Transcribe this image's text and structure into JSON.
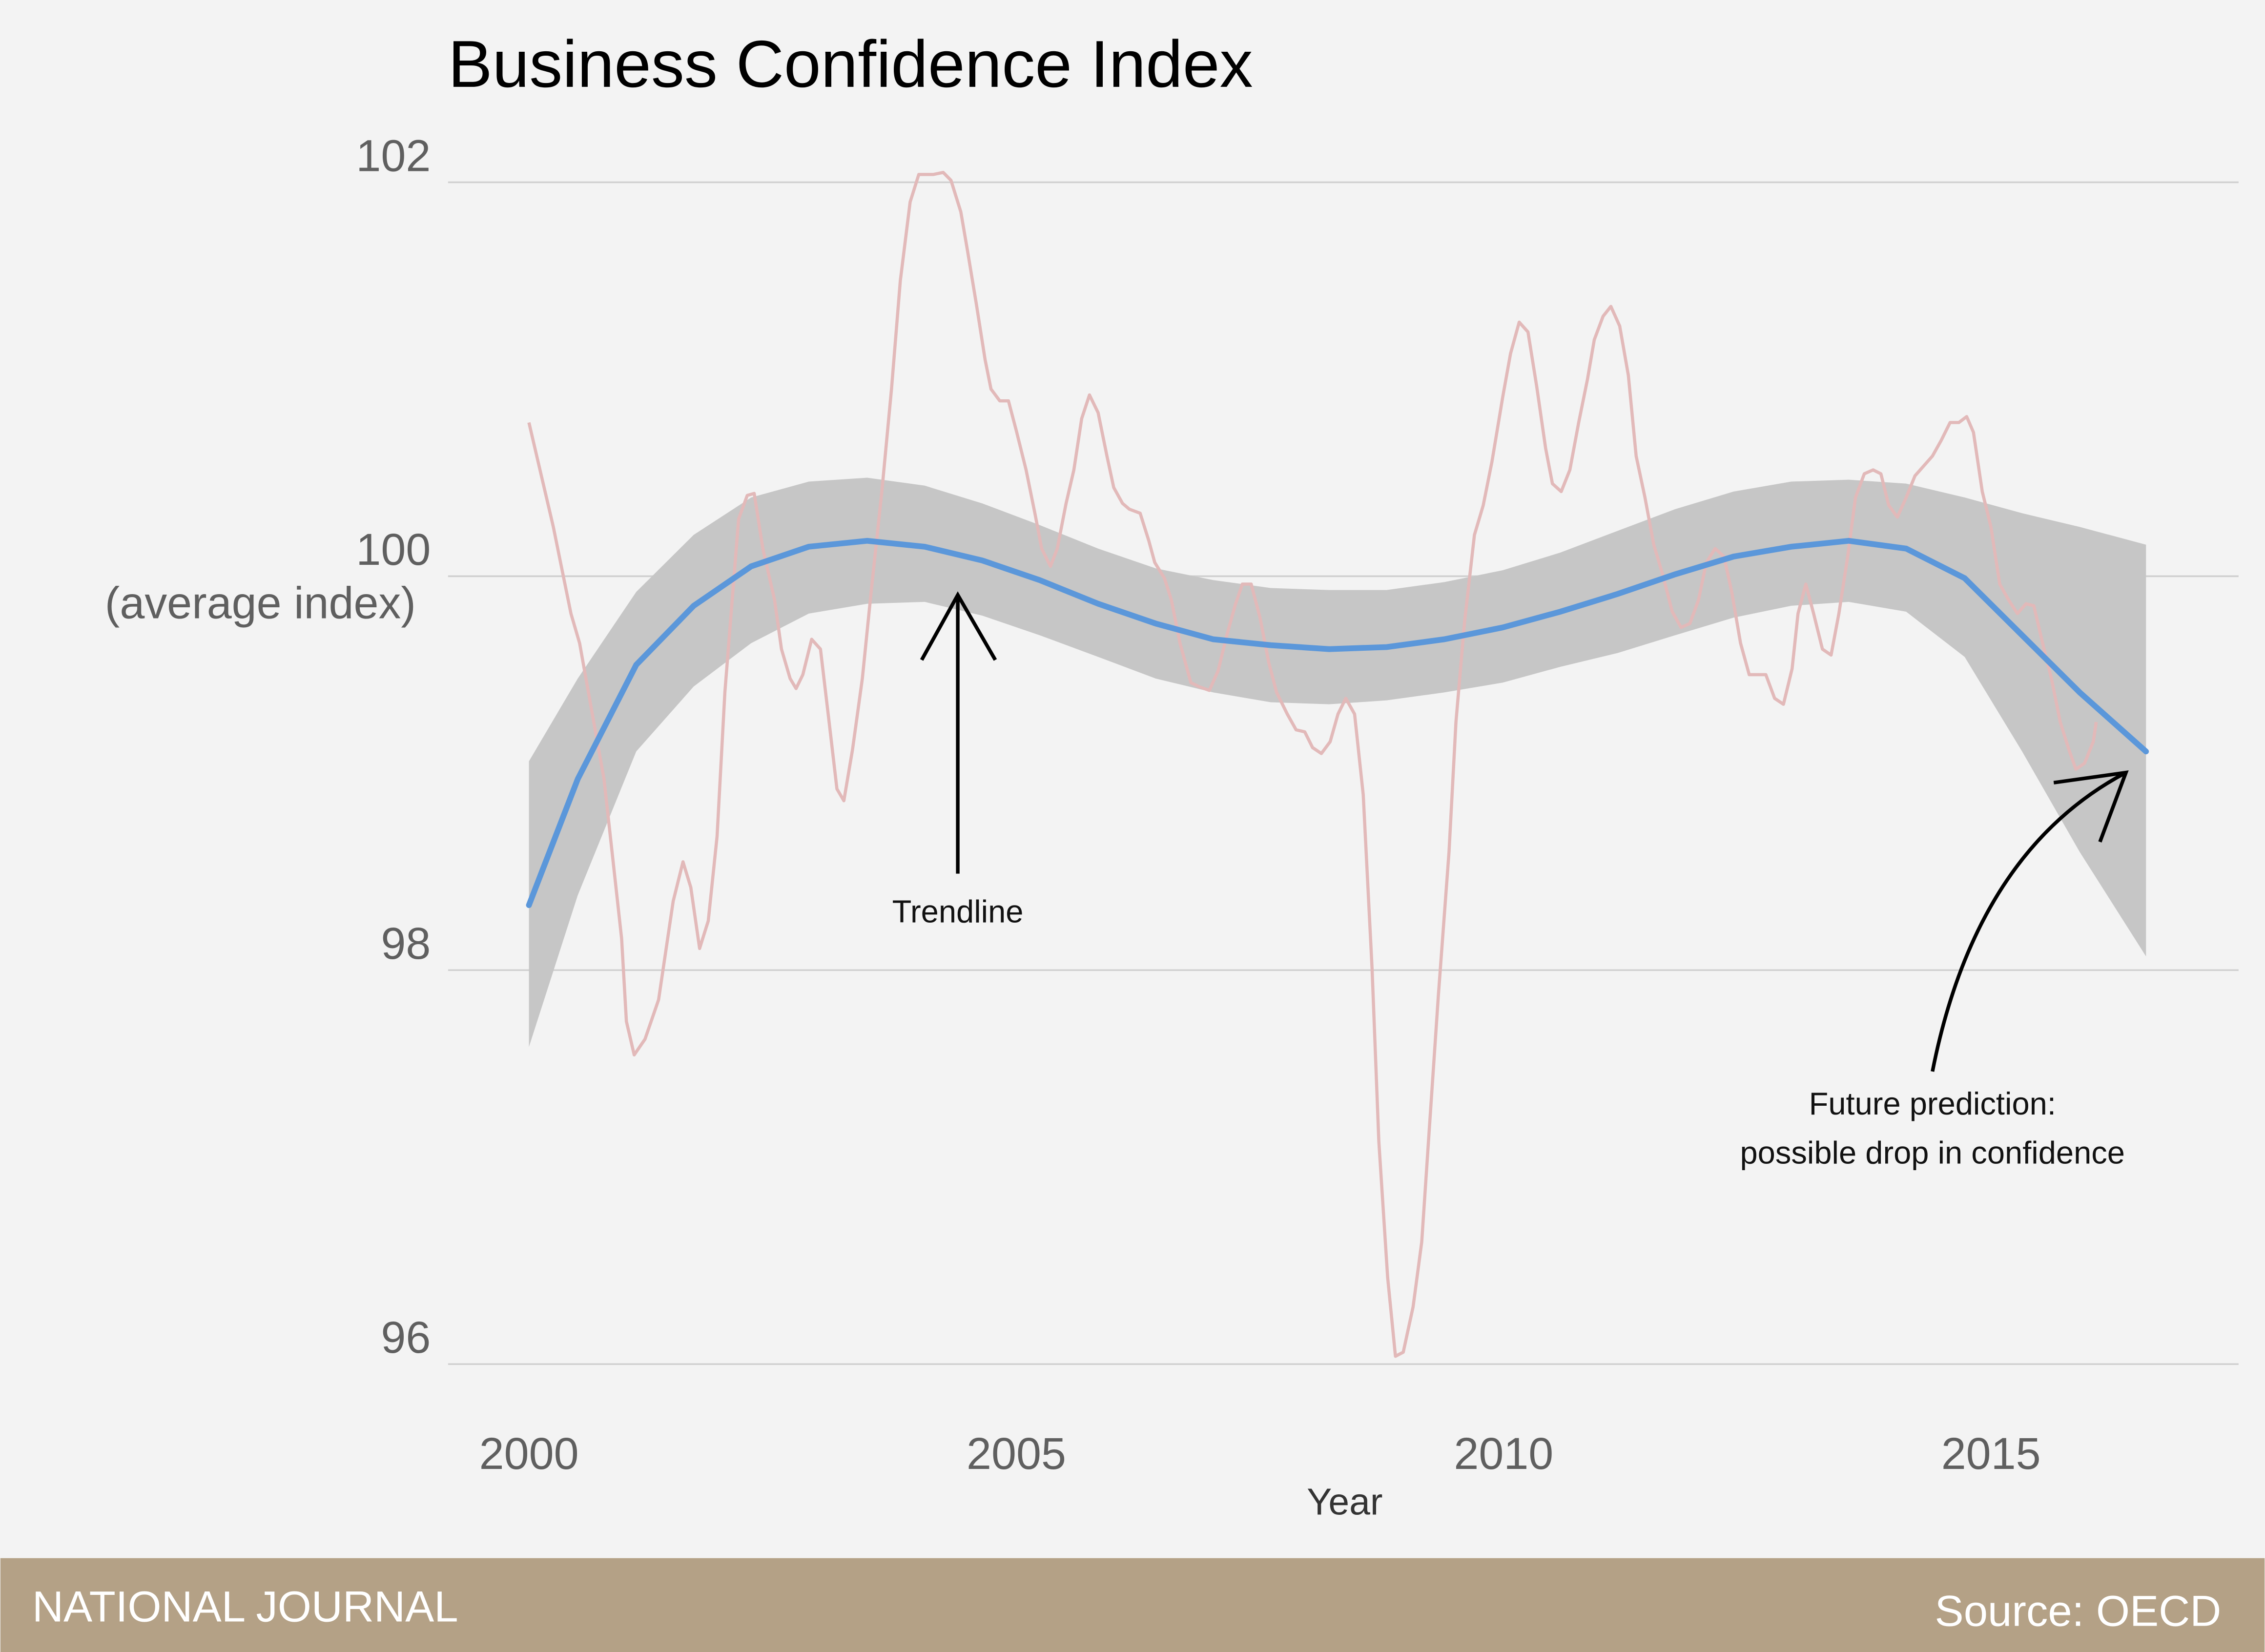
{
  "chart_data": {
    "type": "line",
    "title": "Business Confidence Index",
    "x_axis_label": "Year",
    "y_axis_label": "(average index)",
    "xlim": [
      1999.17,
      2017.54
    ],
    "ylim": [
      95.8,
      102.3
    ],
    "xticks": [
      2000,
      2005,
      2010,
      2015
    ],
    "yticks": [
      96,
      98,
      100,
      102
    ],
    "grid": true,
    "series": [
      {
        "color": "#e2b9b9",
        "x": [
          2000.0,
          2000.25,
          2000.43,
          2000.52,
          2000.77,
          2000.95,
          2001.0,
          2001.08,
          2001.19,
          2001.33,
          2001.48,
          2001.58,
          2001.66,
          2001.75,
          2001.84,
          2001.93,
          2002.01,
          2002.15,
          2002.24,
          2002.31,
          2002.4,
          2002.52,
          2002.59,
          2002.68,
          2002.74,
          2002.81,
          2002.9,
          2002.99,
          2003.08,
          2003.16,
          2003.23,
          2003.32,
          2003.42,
          2003.51,
          2003.62,
          2003.72,
          2003.81,
          2003.91,
          2004.0,
          2004.15,
          2004.25,
          2004.33,
          2004.43,
          2004.5,
          2004.59,
          2004.68,
          2004.74,
          2004.83,
          2004.92,
          2005.0,
          2005.1,
          2005.19,
          2005.26,
          2005.35,
          2005.42,
          2005.51,
          2005.59,
          2005.67,
          2005.75,
          2005.84,
          2005.93,
          2006.0,
          2006.09,
          2006.16,
          2006.27,
          2006.36,
          2006.42,
          2006.52,
          2006.59,
          2006.68,
          2006.79,
          2006.87,
          2006.98,
          2007.07,
          2007.16,
          2007.25,
          2007.32,
          2007.41,
          2007.5,
          2007.59,
          2007.67,
          2007.78,
          2007.87,
          2007.96,
          2008.04,
          2008.13,
          2008.22,
          2008.3,
          2008.38,
          2008.47,
          2008.56,
          2008.65,
          2008.72,
          2008.81,
          2008.89,
          2008.97,
          2009.07,
          2009.16,
          2009.24,
          2009.33,
          2009.44,
          2009.51,
          2009.6,
          2009.7,
          2009.79,
          2009.88,
          2009.99,
          2010.07,
          2010.16,
          2010.25,
          2010.34,
          2010.43,
          2010.5,
          2010.59,
          2010.68,
          2010.77,
          2010.86,
          2010.93,
          2011.02,
          2011.1,
          2011.19,
          2011.28,
          2011.36,
          2011.45,
          2011.54,
          2011.63,
          2011.73,
          2011.82,
          2011.91,
          2012.0,
          2012.08,
          2012.17,
          2012.26,
          2012.34,
          2012.43,
          2012.52,
          2012.61,
          2012.69,
          2012.78,
          2012.87,
          2012.96,
          2013.02,
          2013.1,
          2013.18,
          2013.27,
          2013.36,
          2013.44,
          2013.53,
          2013.61,
          2013.7,
          2013.79,
          2013.87,
          2013.95,
          2014.04,
          2014.13,
          2014.22,
          2014.31,
          2014.4,
          2014.49,
          2014.58,
          2014.67,
          2014.75,
          2014.82,
          2014.91,
          2015.0,
          2015.09,
          2015.18,
          2015.27,
          2015.36,
          2015.44,
          2015.53,
          2015.62,
          2015.71,
          2015.8,
          2015.87,
          2015.96,
          2016.05,
          2016.08
        ],
        "values": [
          100.78,
          100.25,
          99.81,
          99.66,
          98.97,
          98.16,
          97.74,
          97.57,
          97.65,
          97.85,
          98.35,
          98.55,
          98.42,
          98.11,
          98.25,
          98.68,
          99.41,
          100.29,
          100.41,
          100.42,
          100.14,
          99.88,
          99.63,
          99.48,
          99.43,
          99.5,
          99.68,
          99.63,
          99.26,
          98.92,
          98.86,
          99.12,
          99.48,
          99.92,
          100.43,
          100.95,
          101.5,
          101.9,
          102.04,
          102.04,
          102.05,
          102.01,
          101.85,
          101.65,
          101.38,
          101.1,
          100.95,
          100.89,
          100.89,
          100.74,
          100.54,
          100.32,
          100.14,
          100.05,
          100.14,
          100.37,
          100.54,
          100.8,
          100.92,
          100.83,
          100.61,
          100.45,
          100.37,
          100.34,
          100.32,
          100.18,
          100.07,
          99.99,
          99.88,
          99.66,
          99.46,
          99.44,
          99.42,
          99.52,
          99.7,
          99.86,
          99.96,
          99.96,
          99.79,
          99.56,
          99.41,
          99.3,
          99.22,
          99.21,
          99.13,
          99.1,
          99.16,
          99.3,
          99.38,
          99.3,
          98.89,
          98.01,
          97.13,
          96.44,
          96.04,
          96.06,
          96.29,
          96.62,
          97.21,
          97.87,
          98.6,
          99.26,
          99.77,
          100.21,
          100.36,
          100.58,
          100.91,
          101.13,
          101.29,
          101.24,
          100.96,
          100.65,
          100.47,
          100.43,
          100.54,
          100.78,
          101.0,
          101.2,
          101.32,
          101.37,
          101.27,
          101.02,
          100.61,
          100.4,
          100.16,
          100.01,
          99.82,
          99.74,
          99.76,
          99.88,
          100.07,
          100.14,
          100.1,
          99.92,
          99.66,
          99.5,
          99.5,
          99.5,
          99.38,
          99.35,
          99.53,
          99.81,
          99.96,
          99.81,
          99.63,
          99.6,
          99.81,
          100.1,
          100.4,
          100.52,
          100.54,
          100.52,
          100.36,
          100.3,
          100.4,
          100.51,
          100.56,
          100.61,
          100.69,
          100.78,
          100.78,
          100.81,
          100.73,
          100.43,
          100.25,
          99.96,
          99.88,
          99.81,
          99.86,
          99.85,
          99.66,
          99.48,
          99.26,
          99.12,
          99.02,
          99.05,
          99.16,
          99.26
        ]
      }
    ],
    "trend": {
      "color": "#5b97da",
      "band_color": "#c6c6c6",
      "x": [
        2000.0,
        2000.5,
        2001.1,
        2001.69,
        2002.28,
        2002.87,
        2003.47,
        2004.06,
        2004.65,
        2005.24,
        2005.84,
        2006.43,
        2007.02,
        2007.61,
        2008.21,
        2008.8,
        2009.39,
        2009.99,
        2010.58,
        2011.17,
        2011.76,
        2012.36,
        2012.95,
        2013.54,
        2014.13,
        2014.73,
        2015.32,
        2015.91,
        2016.59
      ],
      "values": [
        98.33,
        98.97,
        99.55,
        99.85,
        100.05,
        100.15,
        100.18,
        100.15,
        100.08,
        99.98,
        99.86,
        99.76,
        99.68,
        99.65,
        99.63,
        99.64,
        99.68,
        99.74,
        99.82,
        99.91,
        100.01,
        100.1,
        100.15,
        100.18,
        100.14,
        99.99,
        99.7,
        99.41,
        99.11
      ],
      "upper": [
        99.06,
        99.48,
        99.92,
        100.21,
        100.4,
        100.48,
        100.5,
        100.46,
        100.37,
        100.26,
        100.14,
        100.04,
        99.98,
        99.94,
        99.93,
        99.93,
        99.97,
        100.03,
        100.12,
        100.23,
        100.34,
        100.43,
        100.48,
        100.49,
        100.47,
        100.4,
        100.32,
        100.25,
        100.16
      ],
      "lower": [
        97.61,
        98.38,
        99.11,
        99.44,
        99.66,
        99.81,
        99.86,
        99.87,
        99.8,
        99.7,
        99.59,
        99.48,
        99.41,
        99.36,
        99.35,
        99.37,
        99.41,
        99.46,
        99.54,
        99.61,
        99.7,
        99.79,
        99.85,
        99.87,
        99.82,
        99.59,
        99.11,
        98.6,
        98.07
      ]
    },
    "annotations": [
      "Trendline",
      "Future prediction:",
      "possible drop in confidence"
    ],
    "footer_left": "NATIONAL JOURNAL",
    "footer_right": "Source: OECD"
  }
}
